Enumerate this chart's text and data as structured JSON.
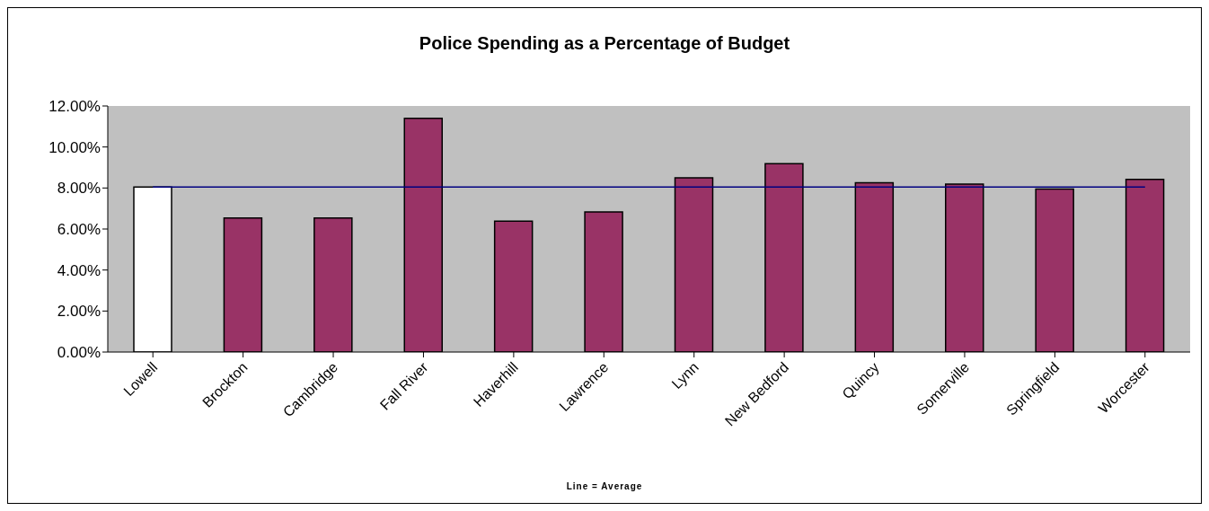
{
  "chart_data": {
    "type": "bar",
    "title": "Police Spending as a Percentage of Budget",
    "annotations": [
      "Line = Average"
    ],
    "categories": [
      "Lowell",
      "Brockton",
      "Cambridge",
      "Fall River",
      "Haverhill",
      "Lawrence",
      "Lynn",
      "New Bedford",
      "Quincy",
      "Somerville",
      "Springfield",
      "Worcester"
    ],
    "values": [
      8.05,
      6.54,
      6.54,
      11.4,
      6.38,
      6.83,
      8.5,
      9.19,
      8.26,
      8.19,
      7.95,
      8.42
    ],
    "colors": [
      "#ffffff",
      "#993366",
      "#993366",
      "#993366",
      "#993366",
      "#993366",
      "#993366",
      "#993366",
      "#993366",
      "#993366",
      "#993366",
      "#993366"
    ],
    "ylim": [
      0,
      12
    ],
    "yticks": [
      {
        "value": 0,
        "label": "0.00%"
      },
      {
        "value": 2,
        "label": "2.00%"
      },
      {
        "value": 4,
        "label": "4.00%"
      },
      {
        "value": 6,
        "label": "6.00%"
      },
      {
        "value": 8,
        "label": "8.00%"
      },
      {
        "value": 10,
        "label": "10.00%"
      },
      {
        "value": 12,
        "label": "12.00%"
      }
    ],
    "ref_lines": [
      {
        "axis": "y",
        "value": 8.05,
        "color": "#000080"
      }
    ],
    "grid": false,
    "legend": false
  }
}
